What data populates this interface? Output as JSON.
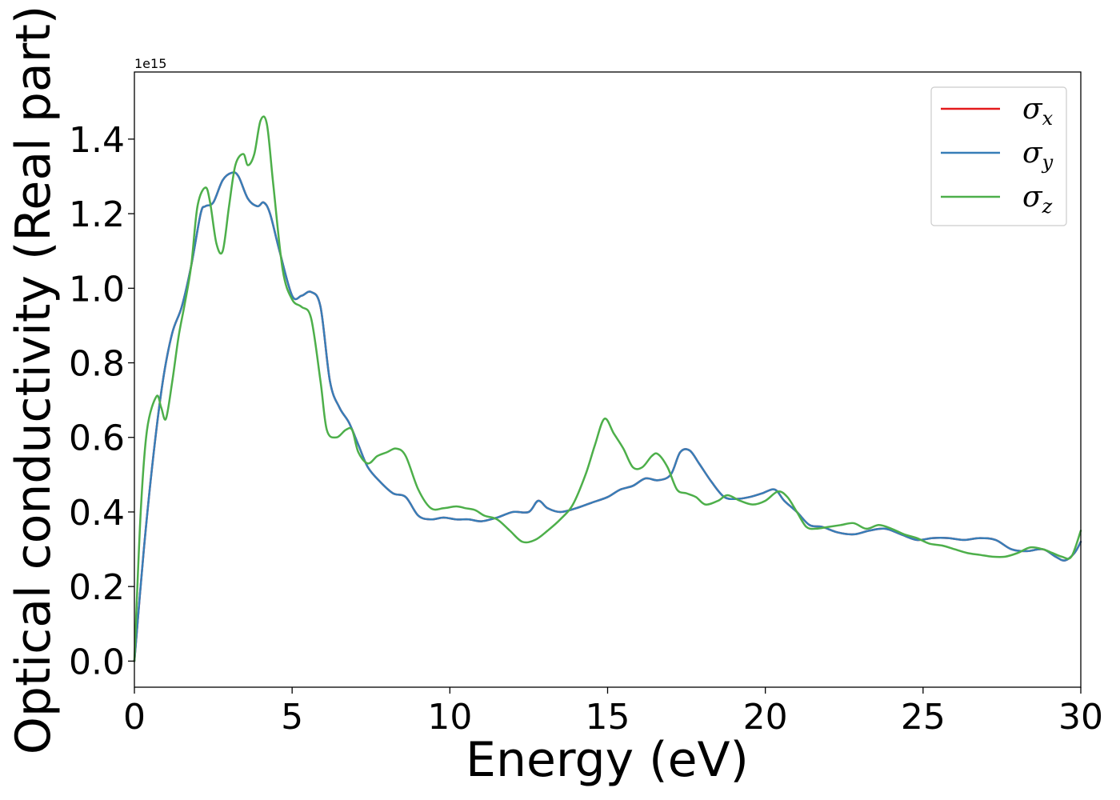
{
  "chart_data": {
    "type": "line",
    "title": "",
    "xlabel": "Energy (eV)",
    "ylabel": "Optical conductivity (Real part)",
    "y_offset_label": "1e15",
    "xlim": [
      0,
      30
    ],
    "ylim": [
      -0.07,
      1.58
    ],
    "xticks": [
      0,
      5,
      10,
      15,
      20,
      25,
      30
    ],
    "xtick_labels": [
      "0",
      "5",
      "10",
      "15",
      "20",
      "25",
      "30"
    ],
    "yticks": [
      0.0,
      0.2,
      0.4,
      0.6,
      0.8,
      1.0,
      1.2,
      1.4
    ],
    "ytick_labels": [
      "0.0",
      "0.2",
      "0.4",
      "0.6",
      "0.8",
      "1.0",
      "1.2",
      "1.4"
    ],
    "grid": false,
    "legend_position": "top-right",
    "series": [
      {
        "name": "σx",
        "symbol": "σ",
        "subscript": "x",
        "color": "#e41a1c",
        "x": [
          0,
          0.3,
          0.6,
          0.9,
          1.2,
          1.5,
          1.8,
          2.1,
          2.25,
          2.5,
          2.8,
          3.1,
          3.3,
          3.6,
          3.9,
          4.1,
          4.3,
          4.6,
          5.0,
          5.3,
          5.6,
          5.9,
          6.2,
          6.5,
          6.8,
          7.1,
          7.4,
          7.8,
          8.2,
          8.6,
          9.0,
          9.4,
          9.8,
          10.2,
          10.6,
          11.0,
          11.5,
          12.0,
          12.5,
          12.8,
          13.1,
          13.5,
          14.0,
          14.5,
          15.0,
          15.4,
          15.8,
          16.2,
          16.6,
          17.0,
          17.3,
          17.6,
          17.9,
          18.3,
          18.7,
          19.1,
          19.5,
          19.9,
          20.3,
          20.6,
          21.0,
          21.4,
          21.8,
          22.3,
          22.8,
          23.3,
          23.8,
          24.3,
          24.8,
          25.3,
          25.8,
          26.3,
          26.8,
          27.3,
          27.8,
          28.3,
          28.8,
          29.2,
          29.5,
          29.8,
          30.0
        ],
        "y": [
          0,
          0.3,
          0.55,
          0.75,
          0.88,
          0.95,
          1.06,
          1.2,
          1.22,
          1.23,
          1.29,
          1.31,
          1.3,
          1.24,
          1.22,
          1.23,
          1.2,
          1.1,
          0.98,
          0.98,
          0.99,
          0.95,
          0.75,
          0.68,
          0.64,
          0.58,
          0.52,
          0.48,
          0.45,
          0.44,
          0.39,
          0.38,
          0.385,
          0.38,
          0.38,
          0.375,
          0.385,
          0.4,
          0.4,
          0.43,
          0.41,
          0.4,
          0.41,
          0.425,
          0.44,
          0.46,
          0.47,
          0.49,
          0.485,
          0.5,
          0.56,
          0.565,
          0.53,
          0.48,
          0.44,
          0.435,
          0.44,
          0.45,
          0.46,
          0.43,
          0.4,
          0.365,
          0.36,
          0.345,
          0.34,
          0.35,
          0.355,
          0.34,
          0.325,
          0.33,
          0.33,
          0.325,
          0.33,
          0.325,
          0.3,
          0.295,
          0.3,
          0.28,
          0.27,
          0.29,
          0.32
        ]
      },
      {
        "name": "σy",
        "symbol": "σ",
        "subscript": "y",
        "color": "#377eb8",
        "x": [
          0,
          0.3,
          0.6,
          0.9,
          1.2,
          1.5,
          1.8,
          2.1,
          2.25,
          2.5,
          2.8,
          3.1,
          3.3,
          3.6,
          3.9,
          4.1,
          4.3,
          4.6,
          5.0,
          5.3,
          5.6,
          5.9,
          6.2,
          6.5,
          6.8,
          7.1,
          7.4,
          7.8,
          8.2,
          8.6,
          9.0,
          9.4,
          9.8,
          10.2,
          10.6,
          11.0,
          11.5,
          12.0,
          12.5,
          12.8,
          13.1,
          13.5,
          14.0,
          14.5,
          15.0,
          15.4,
          15.8,
          16.2,
          16.6,
          17.0,
          17.3,
          17.6,
          17.9,
          18.3,
          18.7,
          19.1,
          19.5,
          19.9,
          20.3,
          20.6,
          21.0,
          21.4,
          21.8,
          22.3,
          22.8,
          23.3,
          23.8,
          24.3,
          24.8,
          25.3,
          25.8,
          26.3,
          26.8,
          27.3,
          27.8,
          28.3,
          28.8,
          29.2,
          29.5,
          29.8,
          30.0
        ],
        "y": [
          0,
          0.3,
          0.55,
          0.75,
          0.88,
          0.95,
          1.06,
          1.2,
          1.22,
          1.23,
          1.29,
          1.31,
          1.3,
          1.24,
          1.22,
          1.23,
          1.2,
          1.1,
          0.98,
          0.98,
          0.99,
          0.95,
          0.75,
          0.68,
          0.64,
          0.58,
          0.52,
          0.48,
          0.45,
          0.44,
          0.39,
          0.38,
          0.385,
          0.38,
          0.38,
          0.375,
          0.385,
          0.4,
          0.4,
          0.43,
          0.41,
          0.4,
          0.41,
          0.425,
          0.44,
          0.46,
          0.47,
          0.49,
          0.485,
          0.5,
          0.56,
          0.565,
          0.53,
          0.48,
          0.44,
          0.435,
          0.44,
          0.45,
          0.46,
          0.43,
          0.4,
          0.365,
          0.36,
          0.345,
          0.34,
          0.35,
          0.355,
          0.34,
          0.325,
          0.33,
          0.33,
          0.325,
          0.33,
          0.325,
          0.3,
          0.295,
          0.3,
          0.28,
          0.27,
          0.29,
          0.32
        ]
      },
      {
        "name": "σz",
        "symbol": "σ",
        "subscript": "z",
        "color": "#4daf4a",
        "x": [
          0,
          0.2,
          0.4,
          0.7,
          0.85,
          1.0,
          1.2,
          1.4,
          1.6,
          1.8,
          2.0,
          2.25,
          2.4,
          2.6,
          2.8,
          3.0,
          3.2,
          3.45,
          3.6,
          3.8,
          4.0,
          4.2,
          4.4,
          4.7,
          5.0,
          5.3,
          5.6,
          5.9,
          6.1,
          6.4,
          6.7,
          6.9,
          7.1,
          7.4,
          7.7,
          8.0,
          8.3,
          8.6,
          9.0,
          9.4,
          9.8,
          10.2,
          10.5,
          10.8,
          11.1,
          11.5,
          11.9,
          12.3,
          12.7,
          13.1,
          13.5,
          13.9,
          14.3,
          14.6,
          14.9,
          15.2,
          15.5,
          15.8,
          16.1,
          16.4,
          16.6,
          16.9,
          17.2,
          17.5,
          17.8,
          18.1,
          18.5,
          18.8,
          19.2,
          19.6,
          20.0,
          20.4,
          20.7,
          21.0,
          21.3,
          21.6,
          22.0,
          22.4,
          22.8,
          23.2,
          23.6,
          24.0,
          24.4,
          24.8,
          25.2,
          25.6,
          26.0,
          26.4,
          26.8,
          27.2,
          27.6,
          28.0,
          28.4,
          28.8,
          29.1,
          29.4,
          29.7,
          30.0
        ],
        "y": [
          0,
          0.4,
          0.62,
          0.71,
          0.68,
          0.65,
          0.75,
          0.87,
          0.96,
          1.06,
          1.22,
          1.27,
          1.23,
          1.12,
          1.1,
          1.22,
          1.33,
          1.36,
          1.33,
          1.36,
          1.45,
          1.44,
          1.28,
          1.05,
          0.97,
          0.95,
          0.92,
          0.75,
          0.62,
          0.6,
          0.62,
          0.62,
          0.56,
          0.53,
          0.55,
          0.56,
          0.57,
          0.55,
          0.46,
          0.41,
          0.41,
          0.415,
          0.41,
          0.405,
          0.39,
          0.38,
          0.35,
          0.32,
          0.325,
          0.35,
          0.38,
          0.42,
          0.5,
          0.58,
          0.65,
          0.61,
          0.57,
          0.52,
          0.52,
          0.55,
          0.555,
          0.52,
          0.46,
          0.45,
          0.44,
          0.42,
          0.43,
          0.445,
          0.43,
          0.42,
          0.43,
          0.455,
          0.44,
          0.4,
          0.36,
          0.355,
          0.36,
          0.365,
          0.37,
          0.355,
          0.365,
          0.355,
          0.34,
          0.33,
          0.315,
          0.31,
          0.3,
          0.29,
          0.285,
          0.28,
          0.28,
          0.29,
          0.305,
          0.3,
          0.29,
          0.28,
          0.28,
          0.35
        ]
      }
    ]
  }
}
